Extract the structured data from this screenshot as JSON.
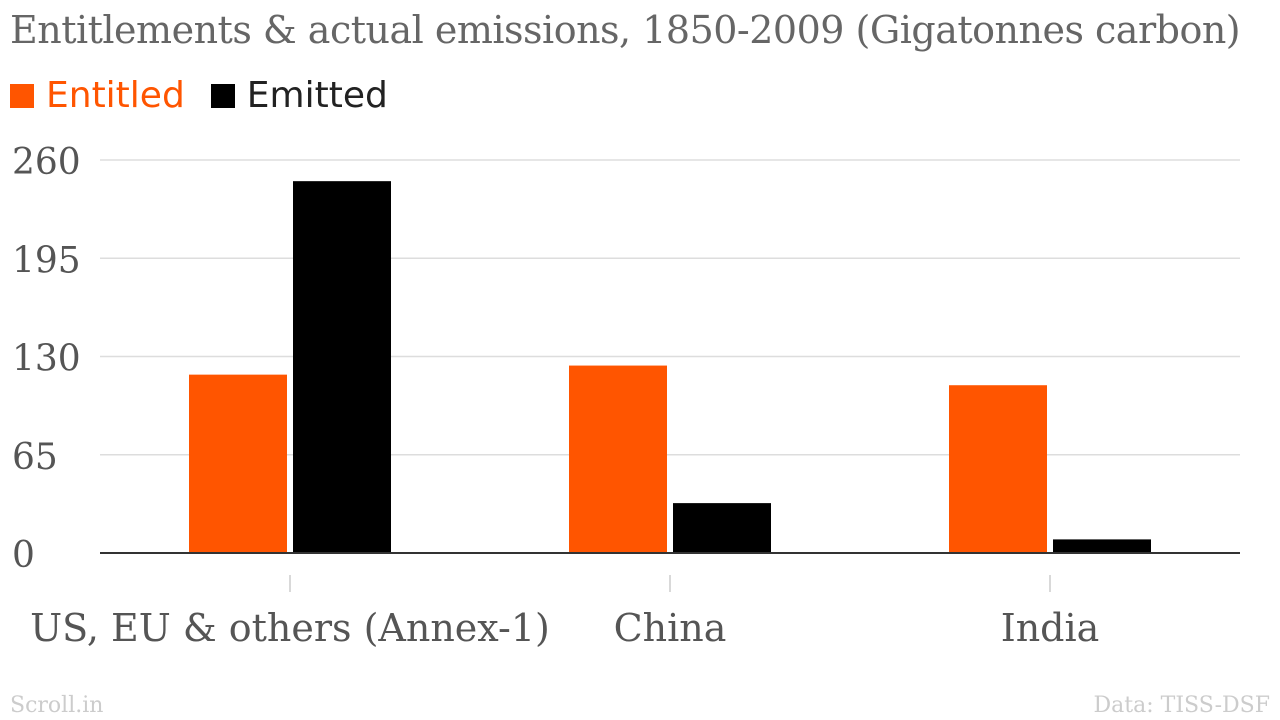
{
  "chart_data": {
    "type": "bar",
    "title": "Entitlements & actual emissions, 1850-2009 (Gigatonnes carbon)",
    "categories": [
      "US, EU & others (Annex-1)",
      "China",
      "India"
    ],
    "series": [
      {
        "name": "Entitled",
        "values": [
          118,
          124,
          111
        ],
        "color": "#ff5500"
      },
      {
        "name": "Emitted",
        "values": [
          246,
          33,
          9
        ],
        "color": "#000000"
      }
    ],
    "yticks": [
      0,
      65,
      130,
      195,
      260
    ],
    "ylim": [
      0,
      260
    ],
    "grid": true,
    "legend": "top-left"
  },
  "footer": {
    "source_left": "Scroll.in",
    "source_right": "Data: TISS-DSF"
  }
}
